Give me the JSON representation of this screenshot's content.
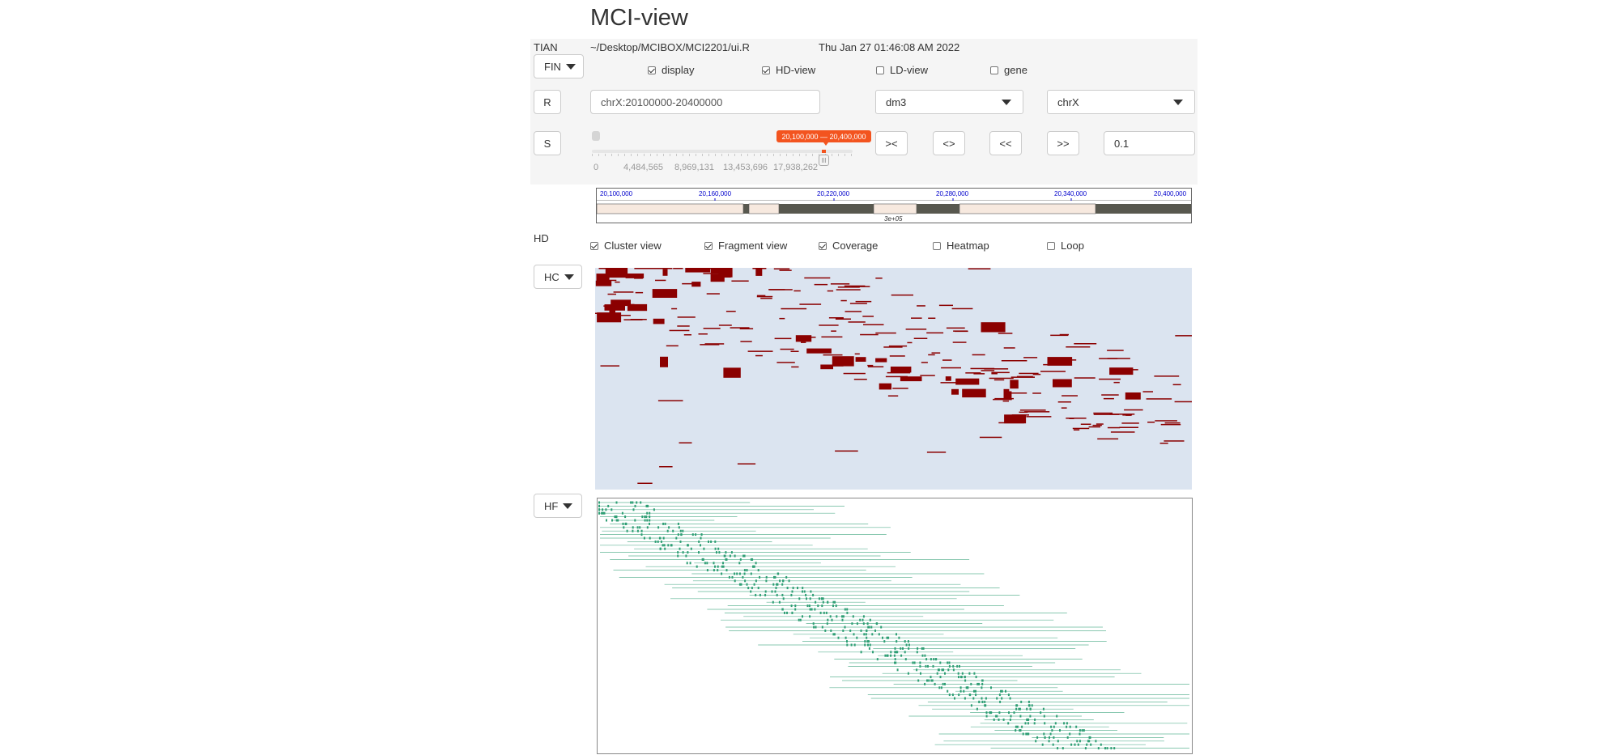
{
  "app": {
    "title": "MCI-view"
  },
  "info": {
    "user": "TIAN",
    "path": "~/Desktop/MCIBOX/MCI2201/ui.R",
    "datetime": "Thu Jan 27 01:46:08 AM 2022"
  },
  "controls": {
    "fin_label": "FIN",
    "r_label": "R",
    "s_label": "S",
    "checks": [
      {
        "label": "display",
        "checked": true
      },
      {
        "label": "HD-view",
        "checked": true
      },
      {
        "label": "LD-view",
        "checked": false
      },
      {
        "label": "gene",
        "checked": false
      }
    ],
    "region": {
      "value": "chrX:20100000-20400000"
    },
    "genome": {
      "selected": "dm3"
    },
    "chrom": {
      "selected": "chrX"
    },
    "slider": {
      "min_label": "0",
      "range_label": "20,100,000 — 20,400,000",
      "ticks": [
        "0",
        "4,484,565",
        "8,969,131",
        "13,453,696",
        "17,938,262"
      ],
      "range": [
        20100000,
        20400000
      ]
    },
    "nav_buttons": [
      "><",
      "<>",
      "<<",
      ">>"
    ],
    "step": {
      "value": "0.1"
    }
  },
  "ideogram": {
    "ticks": [
      "20,100,000",
      "20,160,000",
      "20,220,000",
      "20,280,000",
      "20,340,000",
      "20,400,000"
    ],
    "center_label": "3e+05",
    "colors": {
      "tick": "#0000cc",
      "band_light": "#f7e9df",
      "band_dark": "#58584f"
    }
  },
  "hd": {
    "section_label": "HD",
    "checks": [
      {
        "label": "Cluster view",
        "checked": true
      },
      {
        "label": "Fragment view",
        "checked": true
      },
      {
        "label": "Coverage",
        "checked": true
      },
      {
        "label": "Heatmap",
        "checked": false
      },
      {
        "label": "Loop",
        "checked": false
      }
    ],
    "hc_label": "HC",
    "hf_label": "HF",
    "colors": {
      "cluster_bg": "#dbe4f0",
      "cluster_fg": "#8b0000",
      "fragment": "#2e9e74"
    }
  }
}
